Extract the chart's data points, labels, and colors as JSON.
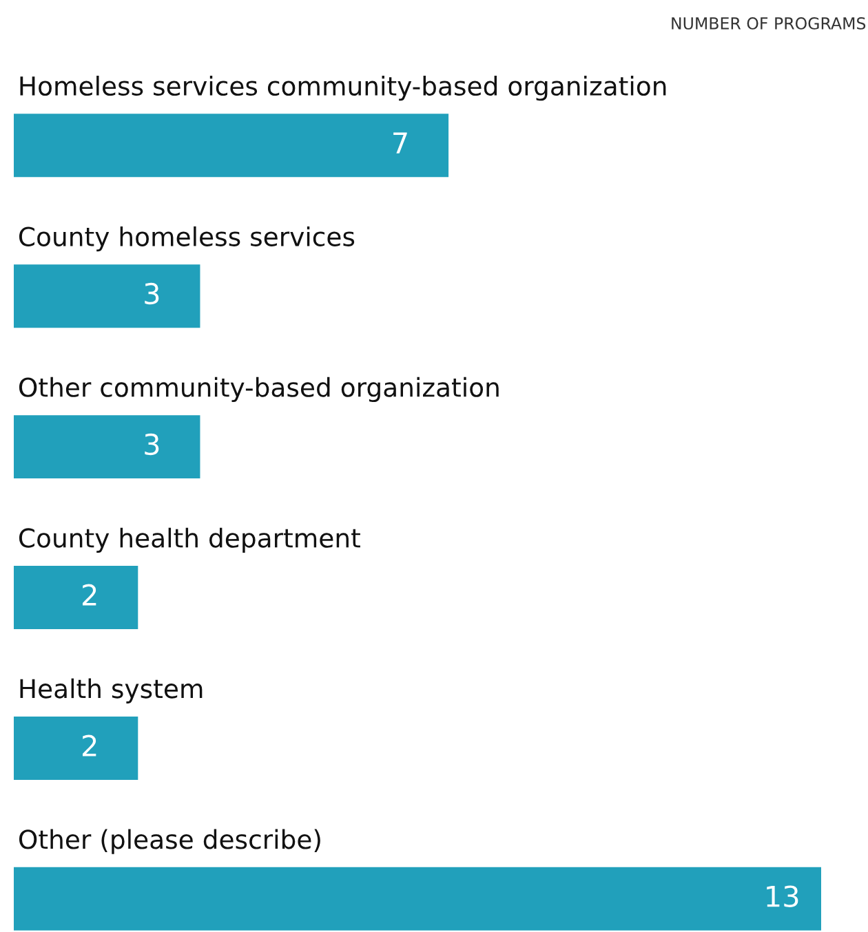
{
  "chart_data": {
    "type": "bar",
    "orientation": "horizontal",
    "xlabel": "NUMBER OF PROGRAMS",
    "categories": [
      "Homeless services community-based organization",
      "County homeless services",
      "Other community-based organization",
      "County health department",
      "Health system",
      "Other (please describe)"
    ],
    "values": [
      7,
      3,
      3,
      2,
      2,
      13
    ],
    "color": "#21a0bb",
    "data_labels": true
  }
}
